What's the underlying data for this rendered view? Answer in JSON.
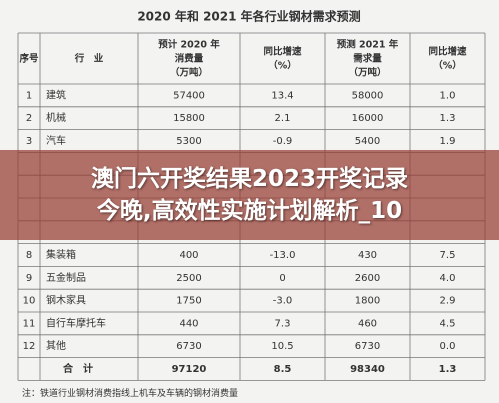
{
  "title": "2020 年和 2021 年各行业钢材需求预测",
  "header": [
    "序号",
    "行　业",
    "预计 2020 年|消费量|（万吨）",
    "同比增速|（%）",
    "预测 2021 年|需求量|（万吨）",
    "同比增速|（%）"
  ],
  "rows_top": [
    [
      "1",
      "建筑",
      "57400",
      "13.4",
      "58000",
      "1.0"
    ],
    [
      "2",
      "机械",
      "15800",
      "2.1",
      "16000",
      "1.3"
    ],
    [
      "3",
      "汽车",
      "5300",
      "-0.9",
      "5400",
      "1.9"
    ]
  ],
  "rows_bottom": [
    [
      "8",
      "集装箱",
      "400",
      "-13.0",
      "430",
      "7.5"
    ],
    [
      "9",
      "五金制品",
      "2500",
      "0",
      "2600",
      "4.0"
    ],
    [
      "10",
      "钢木家具",
      "1750",
      "-3.0",
      "1800",
      "2.9"
    ],
    [
      "11",
      "自行车摩托车",
      "440",
      "7.3",
      "460",
      "4.5"
    ],
    [
      "12",
      "其他",
      "6730",
      "10.5",
      "6730",
      "0.0"
    ]
  ],
  "total": [
    "合　计",
    "97120",
    "8.5",
    "98340",
    "1.3"
  ],
  "footnote": "注：铁道行业钢材消费指线上机车及车辆的钢材消费量",
  "banner": [
    "澳门六开奖结果2023开奖记录",
    "今晚,高效性实施计划解析_10"
  ]
}
